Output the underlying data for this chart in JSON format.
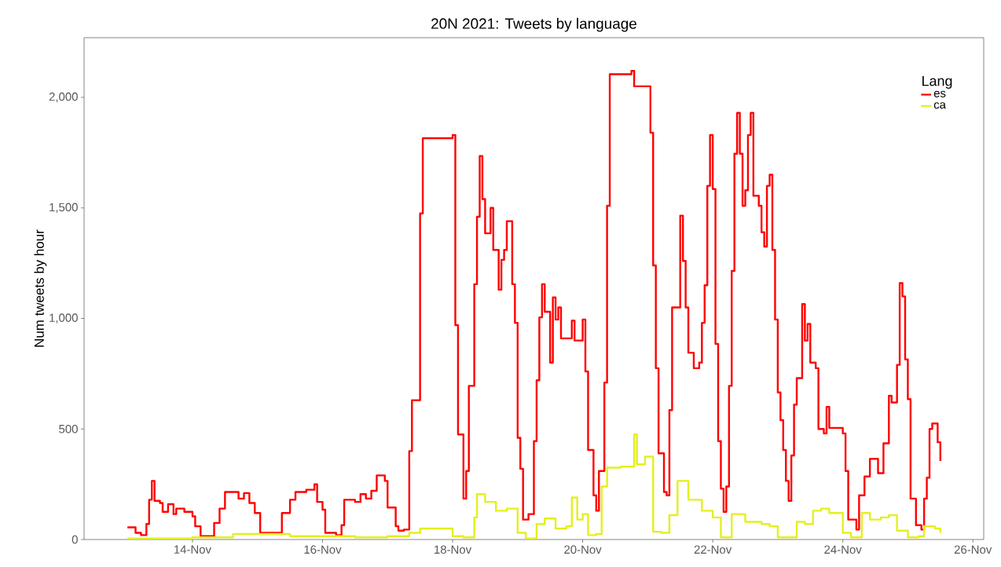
{
  "chart_data": {
    "type": "step",
    "title": "20N 2021: Tweets by language",
    "ylabel": "Num tweets by hour",
    "legend_title": "Lang",
    "legend": "top right",
    "marker": "none",
    "xlim": [
      "2021-11-12T08:00",
      "2021-11-26T04:00"
    ],
    "xticks": [
      {
        "value": "2021-11-14",
        "label": "14-Nov"
      },
      {
        "value": "2021-11-16",
        "label": "16-Nov"
      },
      {
        "value": "2021-11-18",
        "label": "18-Nov"
      },
      {
        "value": "2021-11-20",
        "label": "20-Nov"
      },
      {
        "value": "2021-11-22",
        "label": "22-Nov"
      },
      {
        "value": "2021-11-24",
        "label": "24-Nov"
      },
      {
        "value": "2021-11-26",
        "label": "26-Nov"
      }
    ],
    "ylim": [
      0,
      2270
    ],
    "yticks": [
      0,
      500,
      {
        "value": 1000,
        "label": "1,000"
      },
      {
        "value": 1500,
        "label": "1,500"
      },
      {
        "value": 2000,
        "label": "2,000"
      }
    ],
    "series": [
      {
        "name": "es",
        "color": "#ff0000",
        "x": [
          "2021-11-13T00:00",
          "2021-11-13T03:00",
          "2021-11-13T05:00",
          "2021-11-13T07:00",
          "2021-11-13T08:00",
          "2021-11-13T09:00",
          "2021-11-13T10:00",
          "2021-11-13T12:00",
          "2021-11-13T13:00",
          "2021-11-13T15:00",
          "2021-11-13T17:00",
          "2021-11-13T18:00",
          "2021-11-13T21:00",
          "2021-11-14T00:00",
          "2021-11-14T01:00",
          "2021-11-14T03:00",
          "2021-11-14T07:00",
          "2021-11-14T08:00",
          "2021-11-14T10:00",
          "2021-11-14T12:00",
          "2021-11-14T15:00",
          "2021-11-14T17:00",
          "2021-11-14T19:00",
          "2021-11-14T21:00",
          "2021-11-14T23:00",
          "2021-11-15T01:00",
          "2021-11-15T07:00",
          "2021-11-15T09:00",
          "2021-11-15T12:00",
          "2021-11-15T14:00",
          "2021-11-15T18:00",
          "2021-11-15T21:00",
          "2021-11-15T22:00",
          "2021-11-16T00:00",
          "2021-11-16T01:00",
          "2021-11-16T05:00",
          "2021-11-16T07:00",
          "2021-11-16T08:00",
          "2021-11-16T12:00",
          "2021-11-16T14:00",
          "2021-11-16T16:00",
          "2021-11-16T18:00",
          "2021-11-16T20:00",
          "2021-11-16T23:00",
          "2021-11-17T00:00",
          "2021-11-17T03:00",
          "2021-11-17T04:00",
          "2021-11-17T06:00",
          "2021-11-17T08:00",
          "2021-11-17T09:00",
          "2021-11-17T12:00",
          "2021-11-17T13:00",
          "2021-11-18T00:00",
          "2021-11-18T01:00",
          "2021-11-18T02:00",
          "2021-11-18T04:00",
          "2021-11-18T05:00",
          "2021-11-18T06:00",
          "2021-11-18T08:00",
          "2021-11-18T09:00",
          "2021-11-18T10:00",
          "2021-11-18T11:00",
          "2021-11-18T12:00",
          "2021-11-18T14:00",
          "2021-11-18T15:00",
          "2021-11-18T17:00",
          "2021-11-18T18:00",
          "2021-11-18T19:00",
          "2021-11-18T20:00",
          "2021-11-18T22:00",
          "2021-11-18T23:00",
          "2021-11-19T00:00",
          "2021-11-19T01:00",
          "2021-11-19T02:00",
          "2021-11-19T04:00",
          "2021-11-19T06:00",
          "2021-11-19T07:00",
          "2021-11-19T08:00",
          "2021-11-19T09:00",
          "2021-11-19T10:00",
          "2021-11-19T12:00",
          "2021-11-19T13:00",
          "2021-11-19T14:00",
          "2021-11-19T15:00",
          "2021-11-19T16:00",
          "2021-11-19T20:00",
          "2021-11-19T21:00",
          "2021-11-20T00:00",
          "2021-11-20T01:00",
          "2021-11-20T02:00",
          "2021-11-20T04:00",
          "2021-11-20T05:00",
          "2021-11-20T06:00",
          "2021-11-20T08:00",
          "2021-11-20T09:00",
          "2021-11-20T10:00",
          "2021-11-20T18:00",
          "2021-11-20T19:00",
          "2021-11-21T01:00",
          "2021-11-21T02:00",
          "2021-11-21T03:00",
          "2021-11-21T04:00",
          "2021-11-21T06:00",
          "2021-11-21T07:00",
          "2021-11-21T08:00",
          "2021-11-21T09:00",
          "2021-11-21T12:00",
          "2021-11-21T13:00",
          "2021-11-21T14:00",
          "2021-11-21T15:00",
          "2021-11-21T17:00",
          "2021-11-21T19:00",
          "2021-11-21T20:00",
          "2021-11-21T21:00",
          "2021-11-21T22:00",
          "2021-11-21T23:00",
          "2021-11-22T00:00",
          "2021-11-22T01:00",
          "2021-11-22T02:00",
          "2021-11-22T03:00",
          "2021-11-22T04:00",
          "2021-11-22T05:00",
          "2021-11-22T06:00",
          "2021-11-22T07:00",
          "2021-11-22T08:00",
          "2021-11-22T09:00",
          "2021-11-22T10:00",
          "2021-11-22T11:00",
          "2021-11-22T12:00",
          "2021-11-22T13:00",
          "2021-11-22T14:00",
          "2021-11-22T15:00",
          "2021-11-22T17:00",
          "2021-11-22T18:00",
          "2021-11-22T19:00",
          "2021-11-22T20:00",
          "2021-11-22T21:00",
          "2021-11-22T22:00",
          "2021-11-22T23:00",
          "2021-11-23T00:00",
          "2021-11-23T01:00",
          "2021-11-23T02:00",
          "2021-11-23T03:00",
          "2021-11-23T04:00",
          "2021-11-23T05:00",
          "2021-11-23T06:00",
          "2021-11-23T07:00",
          "2021-11-23T09:00",
          "2021-11-23T10:00",
          "2021-11-23T11:00",
          "2021-11-23T12:00",
          "2021-11-23T14:00",
          "2021-11-23T15:00",
          "2021-11-23T17:00",
          "2021-11-23T18:00",
          "2021-11-23T19:00",
          "2021-11-24T00:00",
          "2021-11-24T01:00",
          "2021-11-24T02:00",
          "2021-11-24T05:00",
          "2021-11-24T06:00",
          "2021-11-24T08:00",
          "2021-11-24T10:00",
          "2021-11-24T13:00",
          "2021-11-24T15:00",
          "2021-11-24T17:00",
          "2021-11-24T18:00",
          "2021-11-24T20:00",
          "2021-11-24T21:00",
          "2021-11-24T22:00",
          "2021-11-24T23:00",
          "2021-11-25T00:00",
          "2021-11-25T01:00",
          "2021-11-25T03:00",
          "2021-11-25T05:00",
          "2021-11-25T06:00",
          "2021-11-25T07:00",
          "2021-11-25T08:00",
          "2021-11-25T09:00",
          "2021-11-25T11:00",
          "2021-11-25T12:00"
        ],
        "values": [
          55,
          30,
          20,
          70,
          180,
          265,
          175,
          165,
          125,
          160,
          115,
          140,
          125,
          105,
          60,
          15,
          15,
          75,
          140,
          215,
          215,
          185,
          210,
          165,
          120,
          30,
          30,
          120,
          180,
          215,
          225,
          250,
          170,
          135,
          30,
          20,
          65,
          180,
          170,
          205,
          185,
          220,
          290,
          265,
          145,
          60,
          40,
          45,
          400,
          630,
          1475,
          1815,
          1830,
          970,
          475,
          185,
          310,
          695,
          1155,
          1460,
          1735,
          1540,
          1385,
          1500,
          1310,
          1130,
          1265,
          1310,
          1440,
          1155,
          980,
          460,
          320,
          90,
          115,
          445,
          720,
          1005,
          1155,
          1030,
          800,
          1095,
          995,
          1050,
          910,
          990,
          900,
          995,
          760,
          405,
          200,
          130,
          310,
          710,
          1510,
          2105,
          2120,
          2050,
          1840,
          1240,
          775,
          390,
          215,
          200,
          585,
          1050,
          1465,
          1260,
          1050,
          845,
          775,
          800,
          980,
          1150,
          1600,
          1830,
          1585,
          885,
          445,
          230,
          125,
          240,
          695,
          1215,
          1745,
          1930,
          1745,
          1510,
          1580,
          1830,
          1930,
          1555,
          1510,
          1390,
          1325,
          1600,
          1650,
          1310,
          995,
          665,
          540,
          405,
          265,
          175,
          380,
          610,
          730,
          1065,
          900,
          975,
          800,
          775,
          500,
          480,
          600,
          505,
          480,
          310,
          90,
          45,
          200,
          285,
          365,
          300,
          435,
          650,
          620,
          790,
          1160,
          1100,
          815,
          635,
          185,
          65,
          45,
          185,
          280,
          500,
          525,
          440,
          355
        ]
      },
      {
        "name": "ca",
        "color": "#e3f01c",
        "x": [
          "2021-11-13T00:00",
          "2021-11-14T00:00",
          "2021-11-14T15:00",
          "2021-11-15T12:00",
          "2021-11-16T12:00",
          "2021-11-17T00:00",
          "2021-11-17T08:00",
          "2021-11-17T12:00",
          "2021-11-18T00:00",
          "2021-11-18T04:00",
          "2021-11-18T08:00",
          "2021-11-18T09:00",
          "2021-11-18T12:00",
          "2021-11-18T16:00",
          "2021-11-18T20:00",
          "2021-11-19T00:00",
          "2021-11-19T03:00",
          "2021-11-19T07:00",
          "2021-11-19T10:00",
          "2021-11-19T14:00",
          "2021-11-19T18:00",
          "2021-11-19T20:00",
          "2021-11-19T22:00",
          "2021-11-20T00:00",
          "2021-11-20T02:00",
          "2021-11-20T05:00",
          "2021-11-20T07:00",
          "2021-11-20T09:00",
          "2021-11-20T14:00",
          "2021-11-20T19:00",
          "2021-11-20T20:00",
          "2021-11-20T23:00",
          "2021-11-21T02:00",
          "2021-11-21T05:00",
          "2021-11-21T08:00",
          "2021-11-21T11:00",
          "2021-11-21T15:00",
          "2021-11-21T20:00",
          "2021-11-22T00:00",
          "2021-11-22T03:00",
          "2021-11-22T05:00",
          "2021-11-22T07:00",
          "2021-11-22T12:00",
          "2021-11-22T18:00",
          "2021-11-22T21:00",
          "2021-11-23T00:00",
          "2021-11-23T04:00",
          "2021-11-23T07:00",
          "2021-11-23T10:00",
          "2021-11-23T13:00",
          "2021-11-23T16:00",
          "2021-11-23T19:00",
          "2021-11-24T00:00",
          "2021-11-24T03:00",
          "2021-11-24T07:00",
          "2021-11-24T10:00",
          "2021-11-24T14:00",
          "2021-11-24T17:00",
          "2021-11-24T20:00",
          "2021-11-25T00:00",
          "2021-11-25T04:00",
          "2021-11-25T06:00",
          "2021-11-25T10:00",
          "2021-11-25T12:00"
        ],
        "values": [
          5,
          10,
          25,
          15,
          10,
          15,
          30,
          50,
          15,
          10,
          100,
          205,
          170,
          130,
          140,
          30,
          5,
          70,
          95,
          50,
          60,
          190,
          90,
          115,
          20,
          25,
          240,
          325,
          330,
          475,
          340,
          375,
          35,
          30,
          110,
          265,
          180,
          130,
          100,
          10,
          10,
          115,
          80,
          70,
          60,
          10,
          10,
          80,
          70,
          130,
          140,
          120,
          30,
          10,
          120,
          90,
          100,
          110,
          40,
          10,
          15,
          60,
          50,
          30
        ]
      }
    ]
  }
}
